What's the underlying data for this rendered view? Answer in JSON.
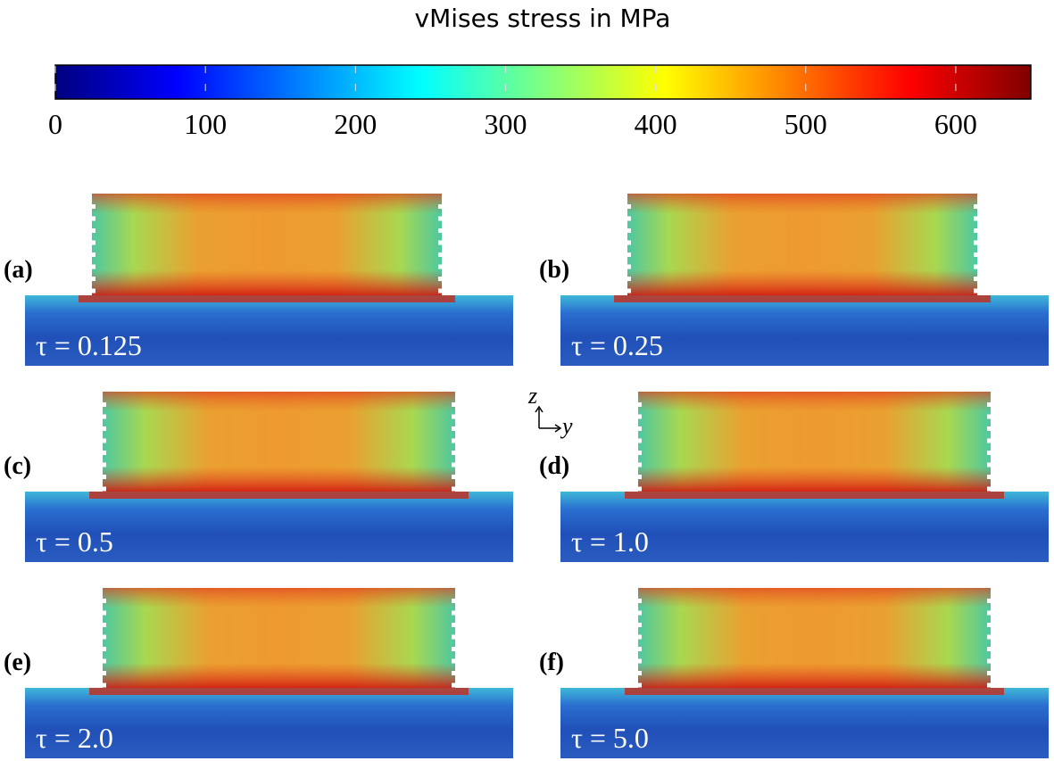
{
  "colorbar": {
    "title": "vMises stress in MPa",
    "range": [
      0,
      650
    ],
    "ticks": [
      0,
      100,
      200,
      300,
      400,
      500,
      600
    ]
  },
  "axes": {
    "z": "z",
    "y": "y"
  },
  "panels": [
    {
      "label": "(a)",
      "tau": "τ = 0.125"
    },
    {
      "label": "(b)",
      "tau": "τ = 0.25"
    },
    {
      "label": "(c)",
      "tau": "τ = 0.5"
    },
    {
      "label": "(d)",
      "tau": "τ = 1.0"
    },
    {
      "label": "(e)",
      "tau": "τ = 2.0"
    },
    {
      "label": "(f)",
      "tau": "τ = 5.0"
    }
  ]
}
